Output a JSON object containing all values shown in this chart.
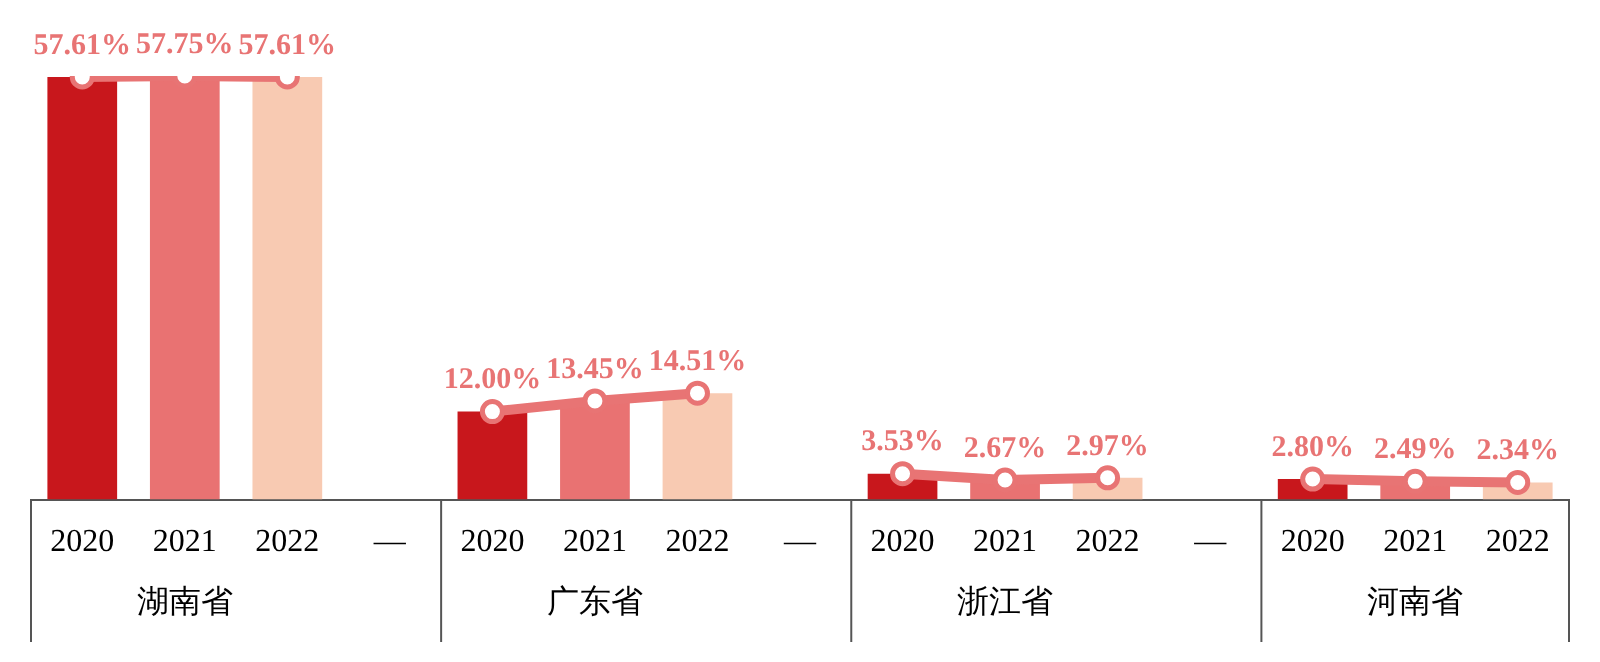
{
  "chart_data": {
    "type": "bar",
    "categories": [
      "2020",
      "2021",
      "2022",
      "—",
      "2020",
      "2021",
      "2022",
      "—",
      "2020",
      "2021",
      "2022",
      "—",
      "2020",
      "2021",
      "2022"
    ],
    "series": [
      {
        "colors": [
          "#c8171c",
          "#e97272",
          "#f8cab2",
          null,
          "#c8171c",
          "#e97272",
          "#f8cab2",
          null,
          "#c8171c",
          "#e97272",
          "#f8cab2",
          null,
          "#c8171c",
          "#e97272",
          "#f8cab2"
        ],
        "values": [
          57.61,
          57.75,
          57.61,
          null,
          12.0,
          13.45,
          14.51,
          null,
          3.53,
          2.67,
          2.97,
          null,
          2.8,
          2.49,
          2.34
        ]
      },
      {
        "type": "line",
        "color": "#e87474",
        "values": [
          57.61,
          57.75,
          57.61,
          null,
          12.0,
          13.45,
          14.51,
          null,
          3.53,
          2.67,
          2.97,
          null,
          2.8,
          2.49,
          2.34
        ],
        "value_labels": [
          "57.61%",
          "57.75%",
          "57.61%",
          null,
          "12.00%",
          "13.45%",
          "14.51%",
          null,
          "3.53%",
          "2.67%",
          "2.97%",
          null,
          "2.80%",
          "2.49%",
          "2.34%"
        ]
      }
    ],
    "marker": "circle",
    "legend": false,
    "grid": false,
    "annotations": [
      "湖南省",
      "广东省",
      "浙江省",
      "河南省"
    ]
  }
}
